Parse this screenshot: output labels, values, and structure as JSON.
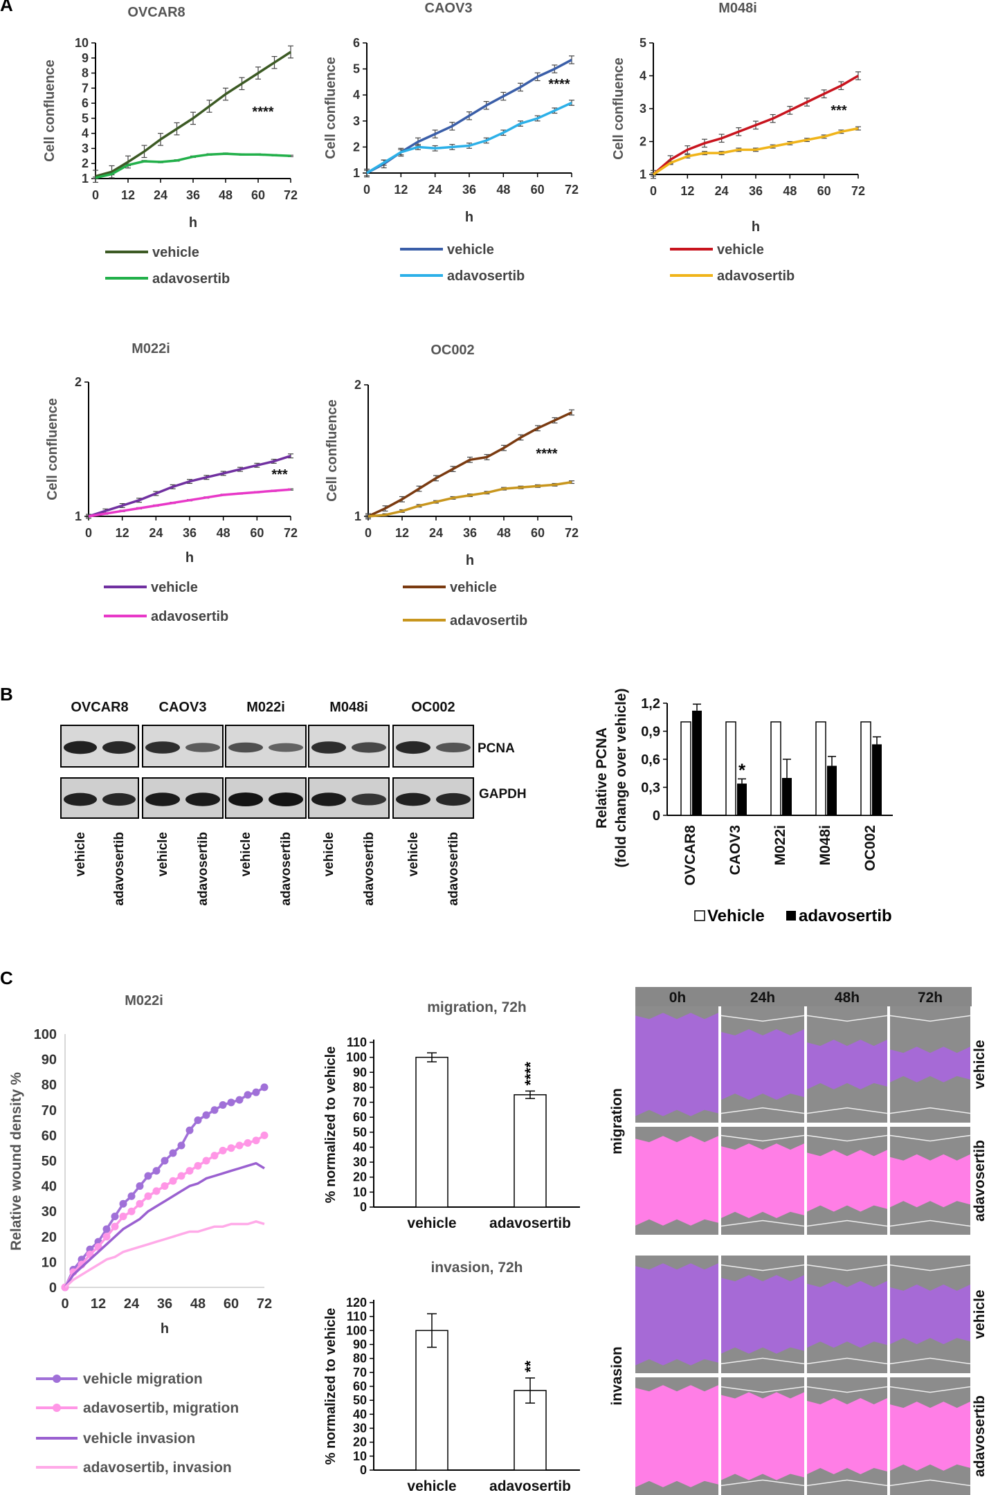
{
  "panel_labels": {
    "a": "A",
    "b": "B",
    "c": "C"
  },
  "colors": {
    "OVCAR8": {
      "vehicle": "#3c5a24",
      "adavosertib": "#22b04a"
    },
    "CAOV3": {
      "vehicle": "#3a5ea8",
      "adavosertib": "#2cb0e8"
    },
    "M048i": {
      "vehicle": "#c8141e",
      "adavosertib": "#f0b41a"
    },
    "M022i": {
      "vehicle": "#7030a0",
      "adavosertib": "#e838c8"
    },
    "OC002": {
      "vehicle": "#7a3a10",
      "adavosertib": "#c8961e"
    },
    "wound": {
      "vmig": "#a070d8",
      "amig": "#ff96e6",
      "vinv": "#9a60d0",
      "ainv": "#ffaae8"
    },
    "scratch": {
      "purple": "#a66ad6",
      "pink": "#ff7ee6",
      "gray": "#8c8c8c"
    }
  },
  "chart_data": [
    {
      "id": "OVCAR8",
      "type": "line",
      "title": "OVCAR8",
      "xlabel": "h",
      "ylabel": "Cell confluence",
      "xticks": [
        0,
        12,
        24,
        36,
        48,
        60,
        72
      ],
      "yticks": [
        1,
        2,
        3,
        4,
        5,
        6,
        7,
        8,
        9,
        10
      ],
      "xlim": [
        0,
        72
      ],
      "ylim": [
        1,
        10
      ],
      "annotation": "****",
      "legend": [
        "vehicle",
        "adavosertib"
      ],
      "series": [
        {
          "name": "vehicle",
          "x": [
            0,
            6,
            12,
            18,
            24,
            30,
            36,
            42,
            48,
            54,
            60,
            66,
            72
          ],
          "y": [
            1.15,
            1.45,
            2.1,
            2.8,
            3.6,
            4.3,
            5.0,
            5.8,
            6.6,
            7.3,
            8.0,
            8.7,
            9.4
          ],
          "err": 0.4
        },
        {
          "name": "adavosertib",
          "x": [
            0,
            6,
            12,
            18,
            24,
            30,
            36,
            42,
            48,
            54,
            60,
            66,
            72
          ],
          "y": [
            1.05,
            1.3,
            1.9,
            2.15,
            2.1,
            2.2,
            2.45,
            2.6,
            2.65,
            2.6,
            2.6,
            2.55,
            2.5
          ],
          "err": 0.05
        }
      ]
    },
    {
      "id": "CAOV3",
      "type": "line",
      "title": "CAOV3",
      "xlabel": "h",
      "ylabel": "Cell confluence",
      "xticks": [
        0,
        12,
        24,
        36,
        48,
        60,
        72
      ],
      "yticks": [
        1,
        2,
        3,
        4,
        5,
        6
      ],
      "xlim": [
        0,
        72
      ],
      "ylim": [
        1,
        6
      ],
      "annotation": "****",
      "legend": [
        "vehicle",
        "adavosertib"
      ],
      "series": [
        {
          "name": "vehicle",
          "x": [
            0,
            6,
            12,
            18,
            24,
            30,
            36,
            42,
            48,
            54,
            60,
            66,
            72
          ],
          "y": [
            1.0,
            1.35,
            1.8,
            2.2,
            2.5,
            2.8,
            3.2,
            3.6,
            3.95,
            4.3,
            4.7,
            5.0,
            5.35
          ],
          "err": 0.15
        },
        {
          "name": "adavosertib",
          "x": [
            0,
            6,
            12,
            18,
            24,
            30,
            36,
            42,
            48,
            54,
            60,
            66,
            72
          ],
          "y": [
            1.0,
            1.4,
            1.8,
            2.0,
            1.95,
            2.0,
            2.05,
            2.25,
            2.55,
            2.9,
            3.1,
            3.4,
            3.7
          ],
          "err": 0.1
        }
      ]
    },
    {
      "id": "M048i",
      "type": "line",
      "title": "M048i",
      "xlabel": "h",
      "ylabel": "Cell confluence",
      "xticks": [
        0,
        12,
        24,
        36,
        48,
        60,
        72
      ],
      "yticks": [
        1,
        2,
        3,
        4,
        5
      ],
      "xlim": [
        0,
        72
      ],
      "ylim": [
        1,
        5
      ],
      "annotation": "***",
      "legend": [
        "vehicle",
        "adavosertib"
      ],
      "series": [
        {
          "name": "vehicle",
          "x": [
            0,
            6,
            12,
            18,
            24,
            30,
            36,
            42,
            48,
            54,
            60,
            66,
            72
          ],
          "y": [
            1.0,
            1.45,
            1.75,
            1.95,
            2.1,
            2.3,
            2.5,
            2.7,
            2.95,
            3.2,
            3.45,
            3.7,
            4.0
          ],
          "err": 0.12
        },
        {
          "name": "adavosertib",
          "x": [
            0,
            6,
            12,
            18,
            24,
            30,
            36,
            42,
            48,
            54,
            60,
            66,
            72
          ],
          "y": [
            1.0,
            1.35,
            1.55,
            1.65,
            1.65,
            1.75,
            1.75,
            1.85,
            1.95,
            2.05,
            2.15,
            2.3,
            2.4
          ],
          "err": 0.05
        }
      ]
    },
    {
      "id": "M022i",
      "type": "line",
      "title": "M022i",
      "xlabel": "h",
      "ylabel": "Cell confluence",
      "xticks": [
        0,
        12,
        24,
        36,
        48,
        60,
        72
      ],
      "yticks": [
        1,
        2
      ],
      "xlim": [
        0,
        72
      ],
      "ylim": [
        1,
        2
      ],
      "annotation": "***",
      "legend": [
        "vehicle",
        "adavosertib"
      ],
      "series": [
        {
          "name": "vehicle",
          "x": [
            0,
            6,
            12,
            18,
            24,
            30,
            36,
            42,
            48,
            54,
            60,
            66,
            72
          ],
          "y": [
            1.0,
            1.04,
            1.08,
            1.12,
            1.17,
            1.22,
            1.26,
            1.29,
            1.32,
            1.35,
            1.38,
            1.41,
            1.45
          ],
          "err": 0.015
        },
        {
          "name": "adavosertib",
          "x": [
            0,
            6,
            12,
            18,
            24,
            30,
            36,
            42,
            48,
            54,
            60,
            66,
            72
          ],
          "y": [
            1.0,
            1.02,
            1.04,
            1.06,
            1.08,
            1.1,
            1.12,
            1.14,
            1.16,
            1.17,
            1.18,
            1.19,
            1.2
          ],
          "err": 0.005
        }
      ]
    },
    {
      "id": "OC002",
      "type": "line",
      "title": "OC002",
      "xlabel": "h",
      "ylabel": "Cell confluence",
      "xticks": [
        0,
        12,
        24,
        36,
        48,
        60,
        72
      ],
      "yticks": [
        1,
        2
      ],
      "xlim": [
        0,
        72
      ],
      "ylim": [
        1,
        2
      ],
      "annotation": "****",
      "legend": [
        "vehicle",
        "adavosertib"
      ],
      "series": [
        {
          "name": "vehicle",
          "x": [
            0,
            6,
            12,
            18,
            24,
            30,
            36,
            42,
            48,
            54,
            60,
            66,
            72
          ],
          "y": [
            1.0,
            1.06,
            1.13,
            1.21,
            1.29,
            1.36,
            1.43,
            1.45,
            1.52,
            1.6,
            1.67,
            1.73,
            1.79
          ],
          "err": 0.02
        },
        {
          "name": "adavosertib",
          "x": [
            0,
            6,
            12,
            18,
            24,
            30,
            36,
            42,
            48,
            54,
            60,
            66,
            72
          ],
          "y": [
            1.0,
            1.01,
            1.04,
            1.08,
            1.11,
            1.14,
            1.16,
            1.18,
            1.21,
            1.22,
            1.23,
            1.24,
            1.26
          ],
          "err": 0.01
        }
      ]
    },
    {
      "id": "PCNA",
      "type": "bar",
      "ylabel": "Relative PCNA\n(fold change over vehicle)",
      "categories": [
        "OVCAR8",
        "CAOV3",
        "M022i",
        "M048i",
        "OC002"
      ],
      "yticks": [
        "0",
        "0,3",
        "0,6",
        "0,9",
        "1,2"
      ],
      "ylim": [
        0,
        1.2
      ],
      "legend": [
        "Vehicle",
        "adavosertib"
      ],
      "annotations": [
        "",
        "*",
        "",
        "",
        ""
      ],
      "series": [
        {
          "name": "Vehicle",
          "values": [
            1.0,
            1.0,
            1.0,
            1.0,
            1.0
          ],
          "err": [
            0,
            0,
            0,
            0,
            0
          ]
        },
        {
          "name": "adavosertib",
          "values": [
            1.12,
            0.34,
            0.4,
            0.53,
            0.76
          ],
          "err": [
            0.07,
            0.05,
            0.2,
            0.1,
            0.08
          ]
        }
      ]
    },
    {
      "id": "wound",
      "type": "line",
      "title": "M022i",
      "xlabel": "h",
      "ylabel": "Relative wound density %",
      "xticks": [
        0,
        12,
        24,
        36,
        48,
        60,
        72
      ],
      "yticks": [
        0,
        10,
        20,
        30,
        40,
        50,
        60,
        70,
        80,
        90,
        100
      ],
      "xlim": [
        0,
        72
      ],
      "ylim": [
        0,
        100
      ],
      "series": [
        {
          "name": "vehicle migration",
          "markers": true,
          "x": [
            0,
            3,
            6,
            9,
            12,
            15,
            18,
            21,
            24,
            27,
            30,
            33,
            36,
            39,
            42,
            45,
            48,
            51,
            54,
            57,
            60,
            63,
            66,
            69,
            72
          ],
          "y": [
            0,
            7,
            11,
            15,
            18,
            23,
            28,
            33,
            36,
            40,
            44,
            46,
            50,
            53,
            56,
            62,
            66,
            68,
            70,
            72,
            73,
            74,
            76,
            77,
            79
          ]
        },
        {
          "name": "adavosertib, migration",
          "markers": true,
          "x": [
            0,
            3,
            6,
            9,
            12,
            15,
            18,
            21,
            24,
            27,
            30,
            33,
            36,
            39,
            42,
            45,
            48,
            51,
            54,
            57,
            60,
            63,
            66,
            69,
            72
          ],
          "y": [
            0,
            6,
            9,
            13,
            16,
            20,
            24,
            28,
            30,
            33,
            36,
            38,
            40,
            42,
            44,
            46,
            48,
            50,
            52,
            54,
            55,
            56,
            57,
            58,
            60
          ]
        },
        {
          "name": "vehicle invasion",
          "markers": false,
          "x": [
            0,
            3,
            6,
            9,
            12,
            15,
            18,
            21,
            24,
            27,
            30,
            33,
            36,
            39,
            42,
            45,
            48,
            51,
            54,
            57,
            60,
            63,
            66,
            69,
            72
          ],
          "y": [
            0,
            5,
            8,
            11,
            14,
            17,
            20,
            23,
            25,
            27,
            30,
            32,
            34,
            36,
            38,
            40,
            41,
            43,
            44,
            45,
            46,
            47,
            48,
            49,
            47
          ]
        },
        {
          "name": "adavosertib, invasion",
          "markers": false,
          "x": [
            0,
            3,
            6,
            9,
            12,
            15,
            18,
            21,
            24,
            27,
            30,
            33,
            36,
            39,
            42,
            45,
            48,
            51,
            54,
            57,
            60,
            63,
            66,
            69,
            72
          ],
          "y": [
            0,
            3,
            5,
            7,
            9,
            11,
            12,
            14,
            15,
            16,
            17,
            18,
            19,
            20,
            21,
            22,
            22,
            23,
            24,
            24,
            25,
            25,
            25,
            26,
            25
          ]
        }
      ]
    },
    {
      "id": "migration_bar",
      "type": "bar",
      "title": "migration, 72h",
      "ylabel": "% normalized to vehicle",
      "categories": [
        "vehicle",
        "adavosertib"
      ],
      "values": [
        100,
        75
      ],
      "err": [
        3,
        2.5
      ],
      "yticks": [
        0,
        10,
        20,
        30,
        40,
        50,
        60,
        70,
        80,
        90,
        100,
        110
      ],
      "ylim": [
        0,
        110
      ],
      "annotations": [
        "",
        "****"
      ]
    },
    {
      "id": "invasion_bar",
      "type": "bar",
      "title": "invasion, 72h",
      "ylabel": "% normalized to vehicle",
      "categories": [
        "vehicle",
        "adavosertib"
      ],
      "values": [
        100,
        57
      ],
      "err": [
        12,
        9
      ],
      "yticks": [
        0,
        10,
        20,
        30,
        40,
        50,
        60,
        70,
        80,
        90,
        100,
        110,
        120
      ],
      "ylim": [
        0,
        120
      ],
      "annotations": [
        "",
        "**"
      ]
    }
  ],
  "blot": {
    "cell_lines": [
      "OVCAR8",
      "CAOV3",
      "M022i",
      "M048i",
      "OC002"
    ],
    "proteins": [
      "PCNA",
      "GAPDH"
    ],
    "lane_labels": [
      "vehicle",
      "adavosertib"
    ],
    "pcna_intensity": [
      [
        0.9,
        0.85
      ],
      [
        0.8,
        0.45
      ],
      [
        0.55,
        0.4
      ],
      [
        0.8,
        0.6
      ],
      [
        0.85,
        0.5
      ]
    ],
    "gapdh_intensity": [
      [
        0.9,
        0.85
      ],
      [
        0.95,
        0.95
      ],
      [
        1.0,
        1.0
      ],
      [
        0.95,
        0.75
      ],
      [
        0.9,
        0.85
      ]
    ]
  },
  "scratch": {
    "timepoints": [
      "0h",
      "24h",
      "48h",
      "72h"
    ],
    "group_labels": [
      "migration",
      "invasion"
    ],
    "row_labels": [
      "vehicle",
      "adavosertib",
      "vehicle",
      "adavosertib"
    ]
  }
}
